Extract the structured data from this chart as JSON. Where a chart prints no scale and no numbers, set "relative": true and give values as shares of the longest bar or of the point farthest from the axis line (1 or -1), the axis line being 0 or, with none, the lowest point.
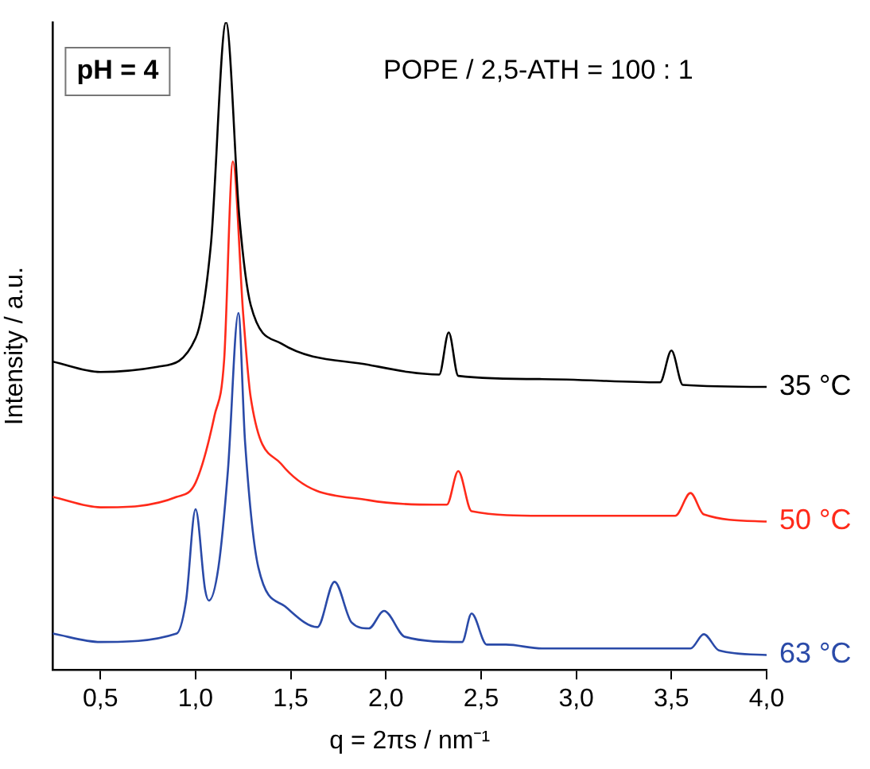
{
  "chart_data": {
    "type": "line",
    "title": "POPE / 2,5-ATH = 100 : 1",
    "xlabel": "q = 2πs / nm⁻¹",
    "ylabel": "Intensity / a.u.",
    "annotations": [
      "pH = 4"
    ],
    "relative": true,
    "xlim": [
      0.25,
      4.0
    ],
    "xticks": [
      {
        "value": 0.5,
        "label": "0,5"
      },
      {
        "value": 1.0,
        "label": "1,0"
      },
      {
        "value": 1.5,
        "label": "1,5"
      },
      {
        "value": 2.0,
        "label": "2,0"
      },
      {
        "value": 2.5,
        "label": "2,5"
      },
      {
        "value": 3.0,
        "label": "3,0"
      },
      {
        "value": 3.5,
        "label": "3,5"
      },
      {
        "value": 4.0,
        "label": "4,0"
      }
    ],
    "grid": false,
    "legend": false,
    "marker": "none",
    "line_style": "solid",
    "series": [
      {
        "name": "35 °C",
        "color": "#000000",
        "x": [
          0.25,
          0.5,
          0.8,
          1.0,
          1.08,
          1.16,
          1.23,
          1.29,
          1.45,
          1.91,
          2.28,
          2.33,
          2.38,
          2.82,
          3.44,
          3.5,
          3.56,
          4.0
        ],
        "values": [
          0.476,
          0.46,
          0.468,
          0.512,
          0.655,
          1,
          0.699,
          0.563,
          0.504,
          0.471,
          0.456,
          0.521,
          0.454,
          0.449,
          0.444,
          0.493,
          0.44,
          0.437
        ]
      },
      {
        "name": "50 °C",
        "color": "#ff2a1a",
        "x": [
          0.25,
          0.5,
          0.9,
          1.0,
          1.1,
          1.15,
          1.196,
          1.25,
          1.29,
          1.45,
          1.91,
          2.32,
          2.38,
          2.45,
          2.82,
          3.52,
          3.6,
          3.67,
          4.0
        ],
        "values": [
          0.267,
          0.251,
          0.267,
          0.289,
          0.393,
          0.478,
          0.785,
          0.55,
          0.42,
          0.318,
          0.262,
          0.255,
          0.307,
          0.245,
          0.238,
          0.238,
          0.273,
          0.24,
          0.229
        ]
      },
      {
        "name": "63 °C",
        "color": "#2a4aa8",
        "x": [
          0.25,
          0.5,
          0.9,
          0.95,
          1.0,
          1.05,
          1.07,
          1.12,
          1.17,
          1.225,
          1.26,
          1.33,
          1.47,
          1.64,
          1.73,
          1.82,
          1.91,
          1.99,
          2.1,
          2.4,
          2.45,
          2.53,
          2.63,
          2.82,
          3.6,
          3.67,
          3.75,
          4.0
        ],
        "values": [
          0.056,
          0.043,
          0.056,
          0.107,
          0.248,
          0.124,
          0.107,
          0.158,
          0.308,
          0.551,
          0.352,
          0.158,
          0.098,
          0.066,
          0.136,
          0.073,
          0.064,
          0.091,
          0.051,
          0.043,
          0.087,
          0.039,
          0.039,
          0.033,
          0.033,
          0.055,
          0.03,
          0.023
        ]
      }
    ]
  }
}
